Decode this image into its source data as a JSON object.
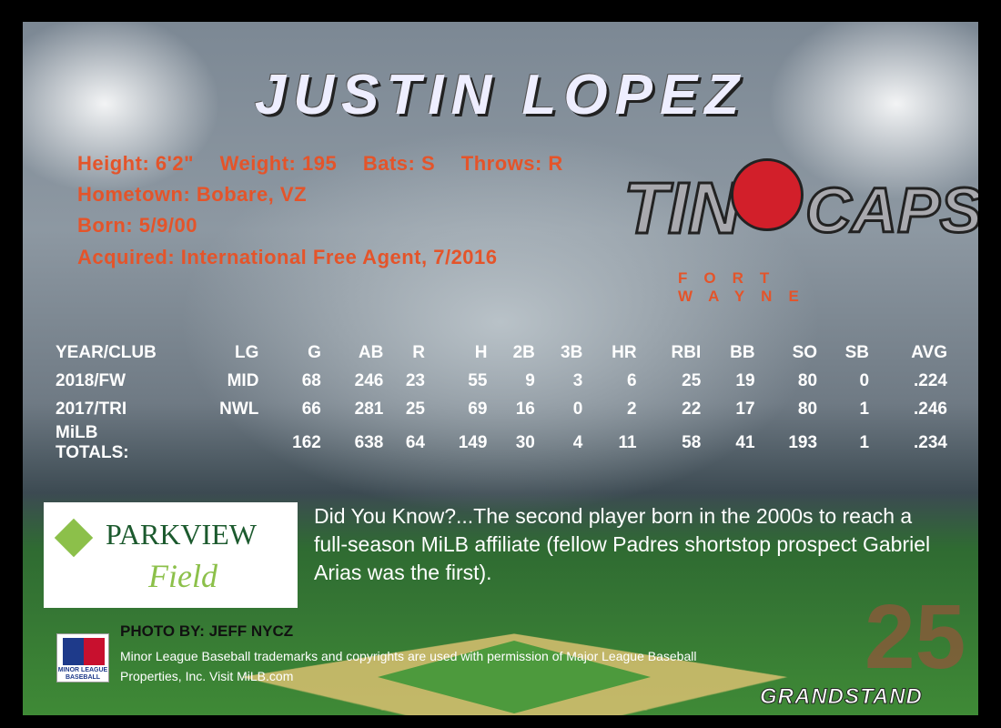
{
  "player": {
    "name": "JUSTIN LOPEZ"
  },
  "bio": {
    "height": "Height: 6'2\"",
    "weight": "Weight: 195",
    "bats": "Bats: S",
    "throws": "Throws: R",
    "hometown": "Hometown: Bobare, VZ",
    "born": "Born: 5/9/00",
    "acquired": "Acquired: International Free Agent, 7/2016"
  },
  "team": {
    "logo_text_left": "TIN",
    "logo_text_right": "CAPS",
    "city": "FORT WAYNE"
  },
  "stats": {
    "headers": [
      "YEAR/CLUB",
      "LG",
      "G",
      "AB",
      "R",
      "H",
      "2B",
      "3B",
      "HR",
      "RBI",
      "BB",
      "SO",
      "SB",
      "AVG"
    ],
    "rows": [
      [
        "2018/FW",
        "MID",
        "68",
        "246",
        "23",
        "55",
        "9",
        "3",
        "6",
        "25",
        "19",
        "80",
        "0",
        ".224"
      ],
      [
        "2017/TRI",
        "NWL",
        "66",
        "281",
        "25",
        "69",
        "16",
        "0",
        "2",
        "22",
        "17",
        "80",
        "1",
        ".246"
      ],
      [
        "MiLB TOTALS:",
        "",
        "162",
        "638",
        "64",
        "149",
        "30",
        "4",
        "11",
        "58",
        "41",
        "193",
        "1",
        ".234"
      ]
    ]
  },
  "sponsor": {
    "line1": "PARKVIEW",
    "line2": "Field"
  },
  "did_you_know": "Did You Know?...The second player born in the 2000s to reach a full-season MiLB affiliate (fellow Padres shortstop prospect Gabriel Arias was the first).",
  "photo_credit": "PHOTO BY: JEFF NYCZ",
  "legal": "Minor League Baseball trademarks and copyrights are used with permission of Major League Baseball Properties, Inc.    Visit MiLB.com",
  "milb_logo": "MINOR LEAGUE BASEBALL",
  "brand": {
    "name": "GRANDSTAND",
    "number": "25"
  },
  "colors": {
    "bio": "#e4542a",
    "field": "#3f8a36"
  }
}
